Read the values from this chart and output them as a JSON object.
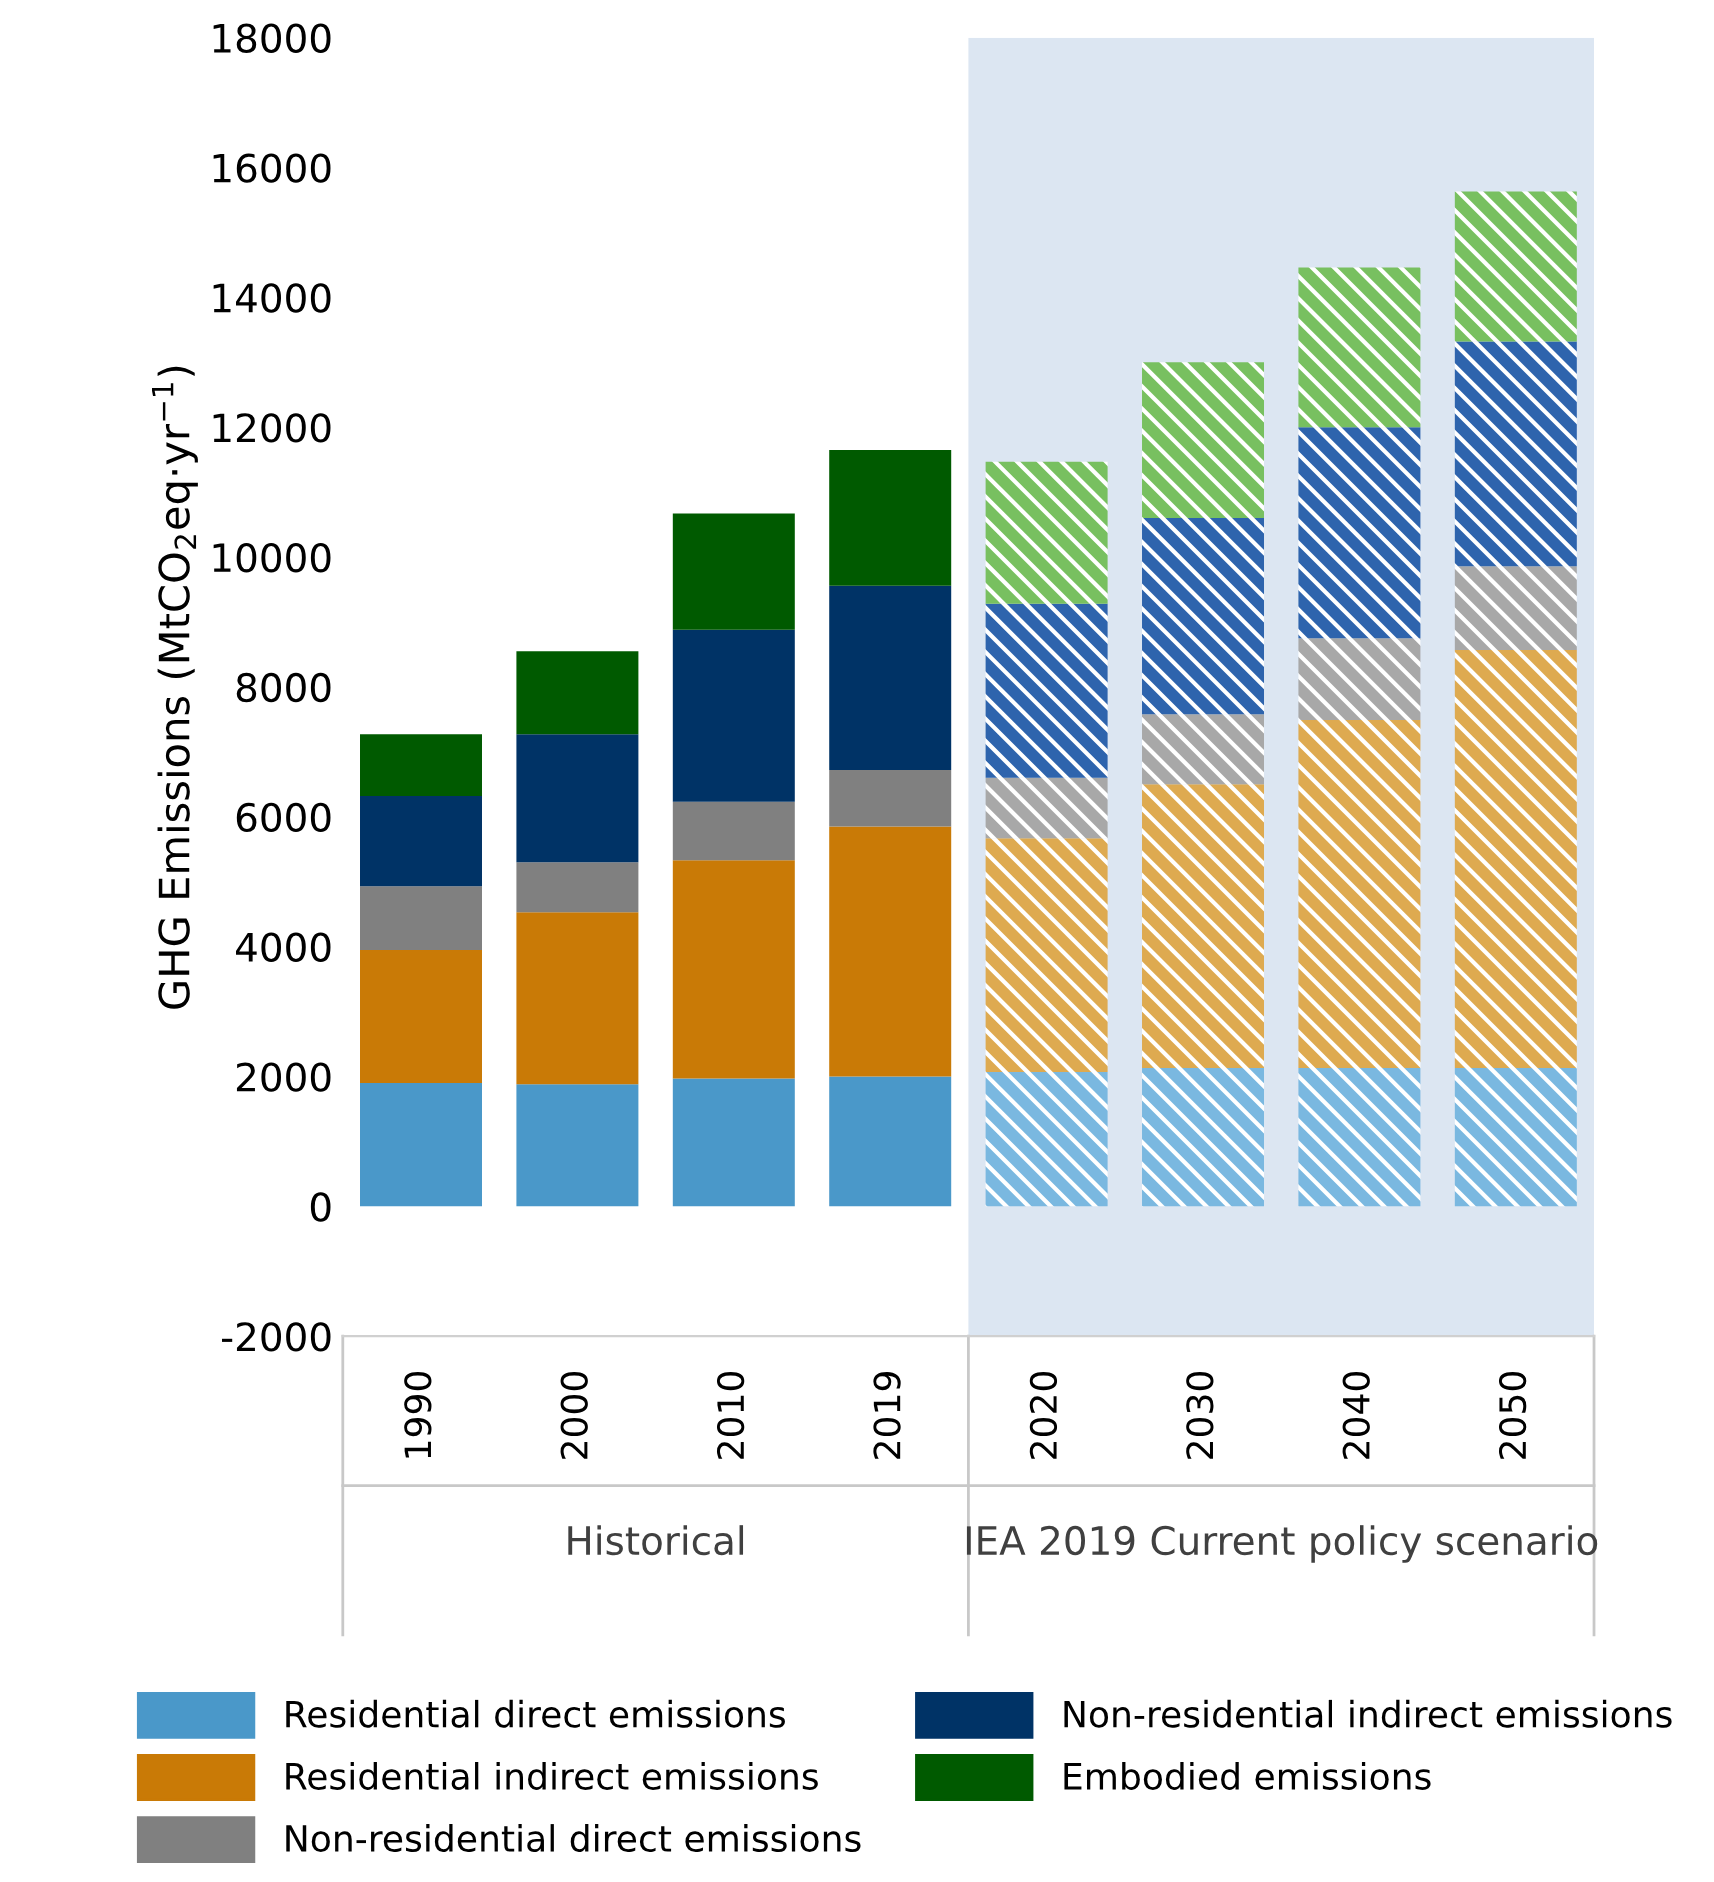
{
  "chart_data": {
    "type": "bar",
    "stacked": true,
    "ylabel": "GHG Emissions (MtCO$_{2}$eq·yr$^{−1}$)",
    "categories": [
      "1990",
      "2000",
      "2010",
      "2019",
      "2020",
      "2030",
      "2040",
      "2050"
    ],
    "series": [
      {
        "name": "Residential direct emissions",
        "color": "#4a98c9",
        "colors": [
          "#4a98c9",
          "#4a98c9",
          "#4a98c9",
          "#4a98c9",
          "#7ab8e0",
          "#7ab8e0",
          "#7ab8e0",
          "#7ab8e0"
        ],
        "values": [
          1900,
          1880,
          1970,
          2000,
          2070,
          2130,
          2130,
          2130
        ]
      },
      {
        "name": "Residential indirect emissions",
        "color": "#c97a06",
        "colors": [
          "#c97a06",
          "#c97a06",
          "#c97a06",
          "#c97a06",
          "#deaa50",
          "#deaa50",
          "#deaa50",
          "#deaa50"
        ],
        "values": [
          2050,
          2650,
          3360,
          3850,
          3600,
          4370,
          5360,
          6440
        ]
      },
      {
        "name": "Non-residential direct emissions",
        "color": "#808080",
        "colors": [
          "#808080",
          "#808080",
          "#808080",
          "#808080",
          "#a8a8a8",
          "#a8a8a8",
          "#a8a8a8",
          "#a8a8a8"
        ],
        "values": [
          980,
          770,
          900,
          870,
          930,
          1080,
          1260,
          1290
        ]
      },
      {
        "name": "Non-residential indirect emissions",
        "color": "#003366",
        "colors": [
          "#003366",
          "#003366",
          "#003366",
          "#003366",
          "#2e64ad",
          "#2e64ad",
          "#2e64ad",
          "#2e64ad"
        ],
        "values": [
          1390,
          1970,
          2650,
          2840,
          2680,
          3020,
          3250,
          3460
        ]
      },
      {
        "name": "Embodied emissions",
        "color": "#005a00",
        "colors": [
          "#005a00",
          "#005a00",
          "#005a00",
          "#005a00",
          "#78c060",
          "#78c060",
          "#78c060",
          "#78c060"
        ],
        "values": [
          950,
          1280,
          1790,
          2090,
          2190,
          2400,
          2460,
          2310
        ]
      }
    ],
    "ylim": [
      -2000,
      18000
    ],
    "yticks": [
      -2000,
      0,
      2000,
      4000,
      6000,
      8000,
      10000,
      12000,
      14000,
      16000,
      18000
    ],
    "bands": [
      {
        "axis": "x",
        "from": "2020",
        "to": "2050",
        "color": "#dce6f2"
      }
    ],
    "annotations": [
      "Historical",
      "IEA 2019 Current policy scenario"
    ],
    "legend": "bottom",
    "grid": false
  }
}
